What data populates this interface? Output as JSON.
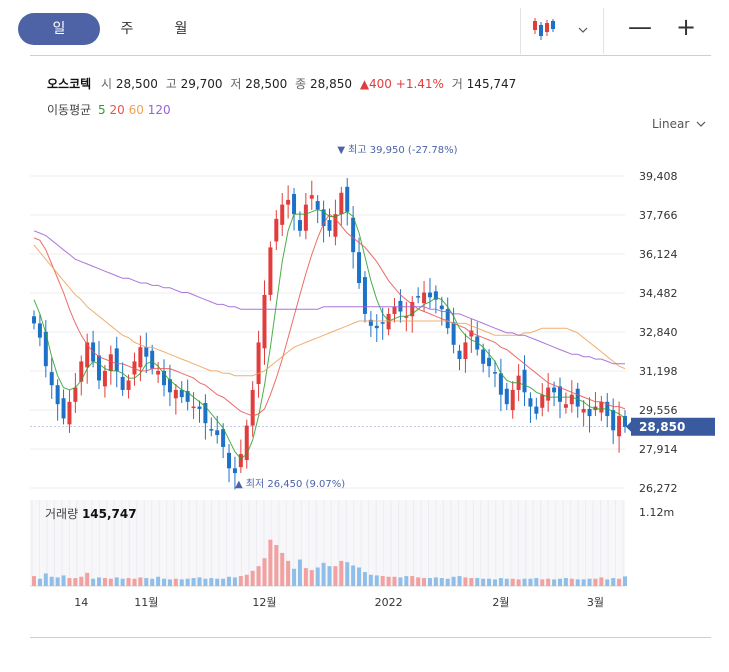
{
  "tabs": [
    {
      "label": "일",
      "active": true
    },
    {
      "label": "주",
      "active": false
    },
    {
      "label": "월",
      "active": false
    }
  ],
  "controls": {
    "chart_type_icon": "candlestick-icon",
    "dropdown_icon": "chevron-down-icon",
    "zoom_out": "—",
    "zoom_in": "+",
    "scale_label": "Linear"
  },
  "stock": {
    "name": "오스코텍",
    "open_label": "시",
    "open": "28,500",
    "high_label": "고",
    "high": "29,700",
    "low_label": "저",
    "low": "28,500",
    "close_label": "종",
    "close": "28,850",
    "change": "▲400",
    "change_pct": "+1.41%",
    "volume_label": "거",
    "volume": "145,747"
  },
  "moving_average": {
    "label": "이동평균",
    "periods": [
      {
        "value": "5",
        "color": "#2ca02c"
      },
      {
        "value": "20",
        "color": "#e8534f"
      },
      {
        "value": "60",
        "color": "#f0a055"
      },
      {
        "value": "120",
        "color": "#9b5fd6"
      }
    ]
  },
  "colors": {
    "up": "#e23d3d",
    "down": "#1d72c8",
    "last_price_tag": "#3a5aa0",
    "annotation": "#4d63a6"
  },
  "chart_data": {
    "type": "candlestick",
    "y_ticks": [
      "39,408",
      "37,766",
      "36,124",
      "34,482",
      "32,840",
      "31,198",
      "29,556",
      "27,914",
      "26,272"
    ],
    "x_ticks": [
      "14",
      "11월",
      "12월",
      "2022",
      "2월",
      "3월"
    ],
    "ylim": [
      26272,
      40500
    ],
    "last_price": "28,850",
    "annotations": {
      "high": "▼ 최고 39,950 (-27.78%)",
      "low": "▲ 최저 26,450 (9.07%)"
    },
    "closes": [
      33200,
      32600,
      31400,
      30600,
      29800,
      29200,
      29900,
      30500,
      31600,
      32400,
      31600,
      30800,
      31200,
      31900,
      31200,
      30400,
      30800,
      31600,
      32200,
      31800,
      31300,
      31200,
      30600,
      30300,
      30400,
      30100,
      29900,
      29700,
      29600,
      29000,
      28700,
      28500,
      28000,
      27100,
      26900,
      27700,
      28900,
      30400,
      32400,
      34400,
      36400,
      37600,
      38200,
      38400,
      37800,
      37100,
      38200,
      38600,
      38000,
      37300,
      37100,
      37800,
      38700,
      37900,
      36200,
      34900,
      33600,
      33100,
      33000,
      33200,
      33600,
      33900,
      33700,
      33500,
      34100,
      34300,
      34500,
      34300,
      34200,
      33800,
      33000,
      32300,
      31700,
      32400,
      32900,
      32100,
      31500,
      31400,
      31100,
      30200,
      29800,
      30400,
      31000,
      30300,
      29700,
      29400,
      30200,
      30500,
      30300,
      29900,
      29800,
      30200,
      29700,
      29600,
      29300,
      29700,
      29900,
      29300,
      28700,
      29300,
      28850
    ],
    "moving_averages": {
      "ma5": [
        34200,
        33600,
        32800,
        31800,
        31000,
        30500,
        30400,
        30500,
        30800,
        31300,
        31600,
        31500,
        31300,
        31200,
        31200,
        31100,
        30900,
        30900,
        31100,
        31500,
        31600,
        31400,
        31100,
        30800,
        30600,
        30400,
        30300,
        30100,
        29900,
        29700,
        29400,
        29100,
        28800,
        28300,
        27800,
        27500,
        27700,
        28300,
        29300,
        30600,
        32200,
        34000,
        35800,
        37100,
        37800,
        37800,
        37800,
        37900,
        38000,
        37900,
        37700,
        37700,
        37800,
        37900,
        37700,
        37000,
        36000,
        35000,
        34200,
        33600,
        33300,
        33400,
        33500,
        33500,
        33600,
        33800,
        34000,
        34100,
        34300,
        34200,
        33900,
        33500,
        33000,
        32700,
        32500,
        32400,
        32200,
        31900,
        31600,
        31100,
        30800,
        30700,
        30700,
        30600,
        30500,
        30300,
        30200,
        30100,
        30100,
        30100,
        30100,
        30100,
        30000,
        29900,
        29700,
        29600,
        29600,
        29600,
        29500,
        29400,
        29200
      ],
      "ma20": [
        36800,
        36700,
        36300,
        35700,
        35100,
        34500,
        33800,
        33200,
        32700,
        32300,
        32000,
        31800,
        31700,
        31600,
        31500,
        31500,
        31400,
        31300,
        31200,
        31200,
        31300,
        31300,
        31300,
        31300,
        31200,
        31100,
        31000,
        30900,
        30700,
        30600,
        30400,
        30200,
        30100,
        29900,
        29700,
        29500,
        29400,
        29300,
        29400,
        29600,
        30200,
        30900,
        31700,
        32600,
        33500,
        34400,
        35300,
        36100,
        36800,
        37400,
        37800,
        37600,
        37300,
        37000,
        36800,
        36600,
        36400,
        36100,
        35800,
        35400,
        35000,
        34700,
        34400,
        34200,
        34000,
        33800,
        33700,
        33600,
        33500,
        33400,
        33300,
        33200,
        33100,
        33000,
        32800,
        32700,
        32600,
        32500,
        32400,
        32200,
        32100,
        31900,
        31700,
        31500,
        31300,
        31100,
        30900,
        30700,
        30600,
        30500,
        30400,
        30300,
        30200,
        30100,
        30000,
        29900,
        29900,
        29800,
        29700,
        29700,
        29600
      ],
      "ma60": [
        36500,
        36200,
        35900,
        35600,
        35300,
        35000,
        34700,
        34400,
        34200,
        33900,
        33700,
        33500,
        33300,
        33100,
        32900,
        32700,
        32600,
        32400,
        32300,
        32200,
        32200,
        32100,
        32000,
        31900,
        31800,
        31700,
        31600,
        31500,
        31400,
        31300,
        31200,
        31200,
        31100,
        31100,
        31000,
        31000,
        31000,
        31000,
        31100,
        31200,
        31400,
        31600,
        31800,
        32000,
        32200,
        32300,
        32400,
        32500,
        32600,
        32700,
        32800,
        32900,
        33000,
        33100,
        33200,
        33300,
        33300,
        33300,
        33300,
        33300,
        33300,
        33300,
        33300,
        33300,
        33300,
        33300,
        33300,
        33300,
        33300,
        33300,
        33300,
        33200,
        33200,
        33200,
        33100,
        33000,
        32900,
        32800,
        32700,
        32700,
        32700,
        32700,
        32700,
        32800,
        32800,
        32900,
        33000,
        33000,
        33000,
        33000,
        33000,
        32900,
        32800,
        32600,
        32400,
        32200,
        32000,
        31800,
        31600,
        31400,
        31300
      ],
      "ma120": [
        37100,
        37000,
        36900,
        36700,
        36500,
        36300,
        36100,
        35900,
        35800,
        35700,
        35600,
        35500,
        35400,
        35300,
        35200,
        35100,
        35100,
        35000,
        34900,
        34900,
        34800,
        34800,
        34700,
        34700,
        34600,
        34500,
        34500,
        34400,
        34300,
        34200,
        34100,
        34000,
        34000,
        33900,
        33900,
        33800,
        33800,
        33800,
        33800,
        33800,
        33800,
        33800,
        33800,
        33800,
        33800,
        33800,
        33800,
        33800,
        33800,
        33900,
        33900,
        33900,
        33900,
        33900,
        33900,
        33900,
        33900,
        33900,
        33900,
        33900,
        33900,
        33900,
        33900,
        33900,
        33900,
        33900,
        33900,
        33800,
        33800,
        33700,
        33700,
        33600,
        33600,
        33500,
        33400,
        33300,
        33200,
        33100,
        33000,
        32900,
        32800,
        32800,
        32700,
        32700,
        32600,
        32500,
        32400,
        32300,
        32200,
        32100,
        32000,
        31900,
        31900,
        31800,
        31800,
        31700,
        31700,
        31600,
        31500,
        31500,
        31500
      ]
    },
    "volume": {
      "label": "거래량",
      "last": "145,747",
      "axis_tick": "1.12m",
      "ylim": [
        0,
        1300000
      ],
      "values": [
        150000,
        110000,
        190000,
        140000,
        130000,
        160000,
        120000,
        120000,
        140000,
        200000,
        110000,
        130000,
        120000,
        110000,
        130000,
        110000,
        120000,
        110000,
        130000,
        120000,
        110000,
        140000,
        110000,
        100000,
        110000,
        100000,
        110000,
        120000,
        130000,
        110000,
        120000,
        110000,
        110000,
        140000,
        130000,
        150000,
        170000,
        230000,
        300000,
        420000,
        700000,
        620000,
        500000,
        380000,
        260000,
        400000,
        270000,
        240000,
        280000,
        350000,
        300000,
        300000,
        380000,
        360000,
        310000,
        280000,
        210000,
        170000,
        160000,
        150000,
        140000,
        140000,
        130000,
        150000,
        150000,
        130000,
        120000,
        120000,
        130000,
        120000,
        110000,
        140000,
        150000,
        130000,
        120000,
        120000,
        110000,
        110000,
        100000,
        120000,
        110000,
        110000,
        100000,
        110000,
        110000,
        120000,
        100000,
        110000,
        100000,
        110000,
        120000,
        110000,
        100000,
        100000,
        110000,
        110000,
        130000,
        100000,
        120000,
        110000,
        145747
      ]
    }
  }
}
